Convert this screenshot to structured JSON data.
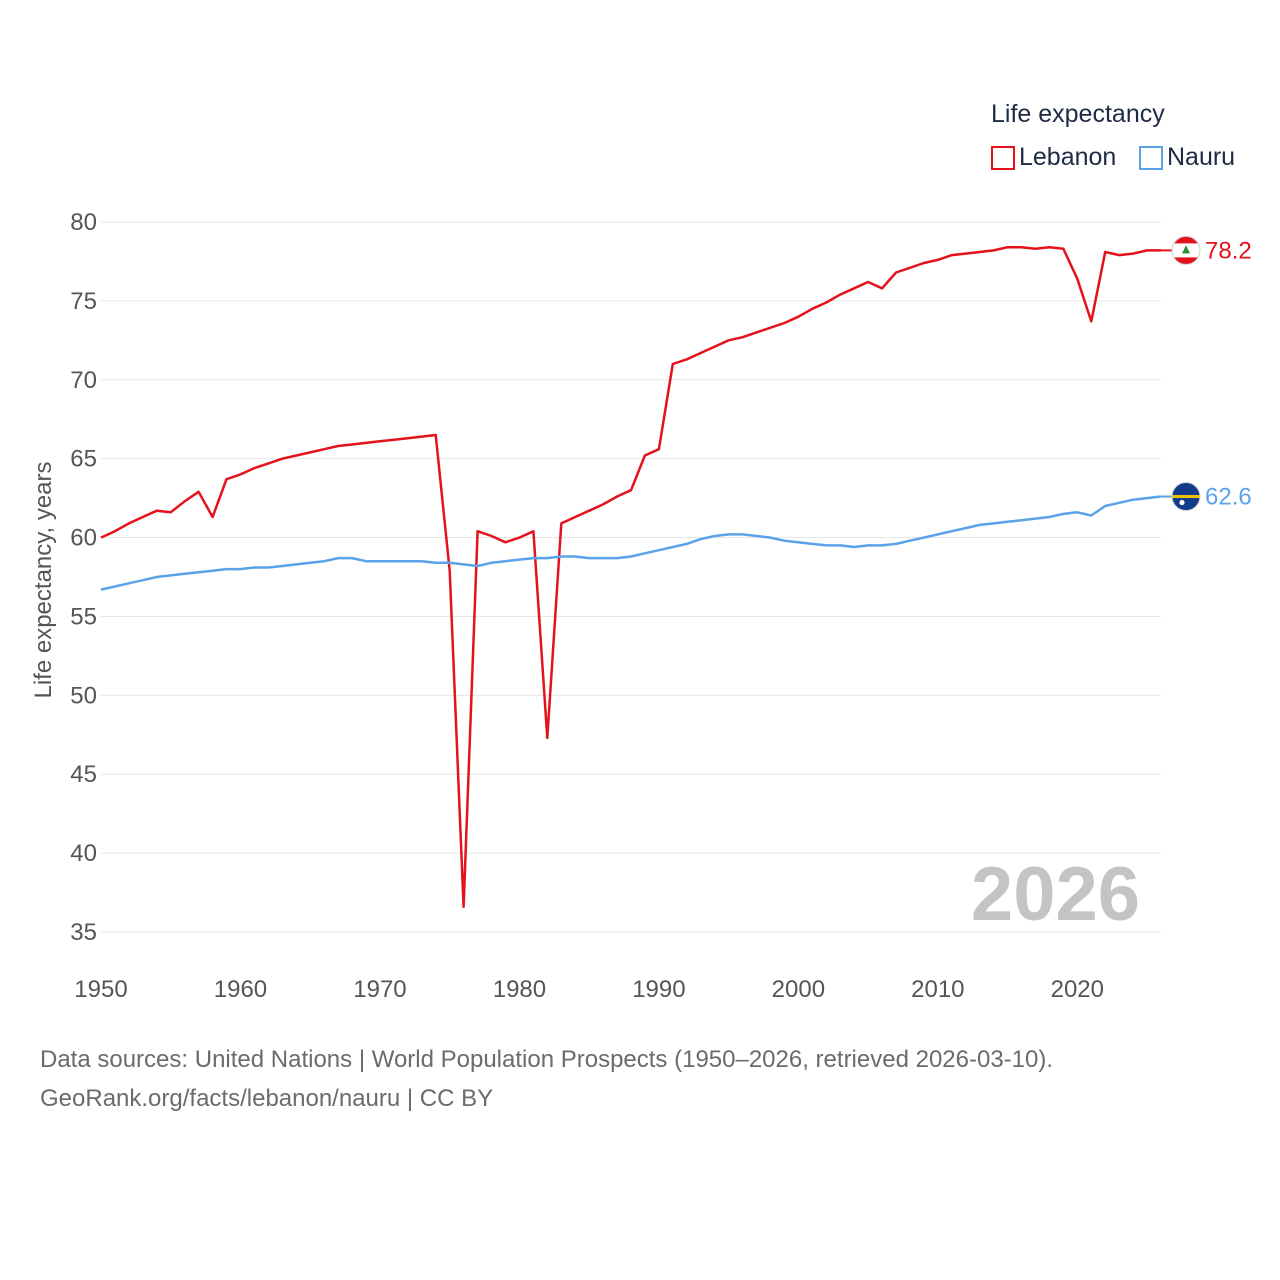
{
  "chart_data": {
    "type": "line",
    "ylabel": "Life expectancy, years",
    "xlabel": "",
    "ylim": [
      35,
      80
    ],
    "xlim": [
      1950,
      2026
    ],
    "y_ticks": [
      35,
      40,
      45,
      50,
      55,
      60,
      65,
      70,
      75,
      80
    ],
    "x_ticks": [
      1950,
      1960,
      1970,
      1980,
      1990,
      2000,
      2010,
      2020
    ],
    "grid": true,
    "year_label": "2026",
    "legend": {
      "title": "Life expectancy",
      "position": "top-right"
    },
    "x": [
      1950,
      1951,
      1952,
      1953,
      1954,
      1955,
      1956,
      1957,
      1958,
      1959,
      1960,
      1961,
      1962,
      1963,
      1964,
      1965,
      1966,
      1967,
      1968,
      1969,
      1970,
      1971,
      1972,
      1973,
      1974,
      1975,
      1976,
      1977,
      1978,
      1979,
      1980,
      1981,
      1982,
      1983,
      1984,
      1985,
      1986,
      1987,
      1988,
      1989,
      1990,
      1991,
      1992,
      1993,
      1994,
      1995,
      1996,
      1997,
      1998,
      1999,
      2000,
      2001,
      2002,
      2003,
      2004,
      2005,
      2006,
      2007,
      2008,
      2009,
      2010,
      2011,
      2012,
      2013,
      2014,
      2015,
      2016,
      2017,
      2018,
      2019,
      2020,
      2021,
      2022,
      2023,
      2024,
      2025,
      2026
    ],
    "series": [
      {
        "name": "Lebanon",
        "color": "#e3121b",
        "end_label": "78.2",
        "flag": "lebanon-flag",
        "values": [
          60.0,
          60.4,
          60.9,
          61.3,
          61.7,
          61.6,
          62.3,
          62.9,
          61.3,
          63.7,
          64.0,
          64.4,
          64.7,
          65.0,
          65.2,
          65.4,
          65.6,
          65.8,
          65.9,
          66.0,
          66.1,
          66.2,
          66.3,
          66.4,
          66.5,
          57.9,
          36.6,
          60.4,
          60.1,
          59.7,
          60.0,
          60.4,
          47.3,
          60.9,
          61.3,
          61.7,
          62.1,
          62.6,
          63.0,
          65.2,
          65.6,
          71.0,
          71.3,
          71.7,
          72.1,
          72.5,
          72.7,
          73.0,
          73.3,
          73.6,
          74.0,
          74.5,
          74.9,
          75.4,
          75.8,
          76.2,
          75.8,
          76.8,
          77.1,
          77.4,
          77.6,
          77.9,
          78.0,
          78.1,
          78.2,
          78.4,
          78.4,
          78.3,
          78.4,
          78.3,
          76.4,
          73.7,
          78.1,
          77.9,
          78.0,
          78.2,
          78.2
        ]
      },
      {
        "name": "Nauru",
        "color": "#5aa3e8",
        "end_label": "62.6",
        "flag": "nauru-flag",
        "values": [
          56.7,
          56.9,
          57.1,
          57.3,
          57.5,
          57.6,
          57.7,
          57.8,
          57.9,
          58.0,
          58.0,
          58.1,
          58.1,
          58.2,
          58.3,
          58.4,
          58.5,
          58.7,
          58.7,
          58.5,
          58.5,
          58.5,
          58.5,
          58.5,
          58.4,
          58.4,
          58.3,
          58.2,
          58.4,
          58.5,
          58.6,
          58.7,
          58.7,
          58.8,
          58.8,
          58.7,
          58.7,
          58.7,
          58.8,
          59.0,
          59.2,
          59.4,
          59.6,
          59.9,
          60.1,
          60.2,
          60.2,
          60.1,
          60.0,
          59.8,
          59.7,
          59.6,
          59.5,
          59.5,
          59.4,
          59.5,
          59.5,
          59.6,
          59.8,
          60.0,
          60.2,
          60.4,
          60.6,
          60.8,
          60.9,
          61.0,
          61.1,
          61.2,
          61.3,
          61.5,
          61.6,
          61.4,
          62.0,
          62.2,
          62.4,
          62.5,
          62.6
        ]
      }
    ]
  },
  "sources": {
    "line1": "Data sources: United Nations | World Population Prospects (1950–2026, retrieved 2026-03-10).",
    "line2": "GeoRank.org/facts/lebanon/nauru | CC BY"
  }
}
